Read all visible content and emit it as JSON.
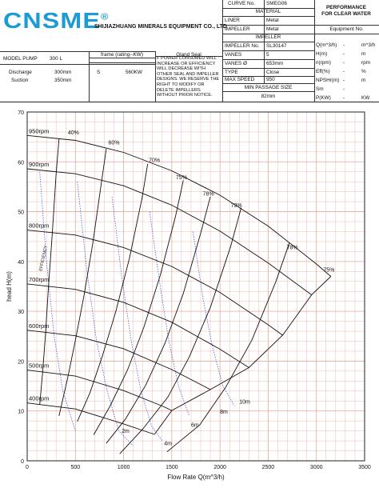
{
  "header": {
    "logo_text": "CNSME",
    "logo_mark": "®",
    "company": "SHIJIAZHUANG MINERALS EQUIPMENT CO., LTD",
    "curve_no_label": "CURVE No.",
    "curve_no_value": "SMEG06",
    "material_title": "MATERIAL",
    "liner_label": "LINER",
    "liner_value": "Metal",
    "impeller_label": "IMPELLER",
    "impeller_value": "Metal",
    "impeller_title": "IMPELLER",
    "impeller_no_label": "IMPELLER No.",
    "impeller_no_value": "SL30147",
    "vanes_label": "VANES",
    "vanes_value": "5",
    "vanes_dia_label": "VANES Ø",
    "vanes_dia_value": "653mm",
    "type_label": "TYPE",
    "type_value": "Close",
    "max_speed_label": "MAX SPEED",
    "max_speed_value": "950",
    "min_passage_label": "MIN PASSAGE SIZE",
    "min_passage_value": "82mm",
    "performance_line1": "PERFORMANCE",
    "performance_line2": "FOR CLEAR WATER",
    "equipment_no_label": "Equipment No.",
    "model_label": "MODEL PUMP",
    "model_value": "300   L",
    "discharge_label": "Discharge",
    "discharge_value": "300mm",
    "suction_label": "Suction",
    "suction_value": "350mm",
    "frame_label": "frame (rating--KW)",
    "gland_label": "Gland Seal",
    "frame_value": "S",
    "rating_value": "560KW",
    "notice": "F POWER CONSUMED WILL INCREASE OR EFFICIENCY WILL DECREASE WITH OTHER SEAL AND IMPELLER DESIGNS. WE RESERVE THE RIGHT TO MODIFY OR DELETE IMPELLERS WITHOUT PRIOR NOTICE.",
    "perf_rows": [
      {
        "label": "Q(m^3/h)",
        "dash": "-",
        "unit": "m^3/h"
      },
      {
        "label": "H(m)",
        "dash": "-",
        "unit": "m"
      },
      {
        "label": "n(rpm)",
        "dash": "-",
        "unit": "rpm"
      },
      {
        "label": "Eff(%)",
        "dash": "-",
        "unit": "%"
      },
      {
        "label": "NPSHr(m)",
        "dash": "-",
        "unit": "m"
      },
      {
        "label": "Sm",
        "dash": "-",
        "unit": ""
      },
      {
        "label": "P(KW)",
        "dash": "-",
        "unit": "KW"
      }
    ]
  },
  "chart_data": {
    "type": "line",
    "xlabel": "Flow Rate Q(m^3/h)",
    "ylabel": "head H(m)",
    "xlim": [
      0,
      3500
    ],
    "ylim": [
      0,
      70
    ],
    "x_ticks": [
      0,
      500,
      1000,
      1500,
      2000,
      2500,
      3000,
      3500
    ],
    "y_ticks": [
      0,
      10,
      20,
      30,
      40,
      50,
      60,
      70
    ],
    "grid": true,
    "grid_color": "#e8a89a",
    "line_color": "#111111",
    "npsh_color": "#3a4fd0",
    "speed_curves": [
      {
        "name": "950rpm",
        "points": [
          [
            0,
            65.3
          ],
          [
            500,
            64.3
          ],
          [
            1000,
            61.9
          ],
          [
            1500,
            58.2
          ],
          [
            2000,
            53.3
          ],
          [
            2500,
            47.1
          ],
          [
            3000,
            39.5
          ],
          [
            3150,
            37.0
          ]
        ]
      },
      {
        "name": "900rpm",
        "points": [
          [
            0,
            58.6
          ],
          [
            500,
            57.6
          ],
          [
            1000,
            55.2
          ],
          [
            1500,
            51.3
          ],
          [
            2000,
            46.1
          ],
          [
            2500,
            39.7
          ],
          [
            2950,
            33.3
          ]
        ]
      },
      {
        "name": "800rpm",
        "points": [
          [
            0,
            46.3
          ],
          [
            500,
            45.3
          ],
          [
            1000,
            42.8
          ],
          [
            1500,
            39.0
          ],
          [
            2000,
            33.8
          ],
          [
            2500,
            27.3
          ],
          [
            2650,
            25.2
          ]
        ]
      },
      {
        "name": "700rpm",
        "points": [
          [
            0,
            35.5
          ],
          [
            500,
            34.4
          ],
          [
            1000,
            31.8
          ],
          [
            1500,
            27.8
          ],
          [
            2000,
            22.4
          ],
          [
            2300,
            18.7
          ]
        ]
      },
      {
        "name": "600rpm",
        "points": [
          [
            0,
            26.2
          ],
          [
            500,
            25.1
          ],
          [
            1000,
            22.5
          ],
          [
            1500,
            18.3
          ],
          [
            1900,
            14.3
          ]
        ]
      },
      {
        "name": "500rpm",
        "points": [
          [
            0,
            18.2
          ],
          [
            500,
            17.0
          ],
          [
            1000,
            14.1
          ],
          [
            1400,
            11.0
          ],
          [
            1500,
            10.1
          ]
        ]
      },
      {
        "name": "400rpm",
        "points": [
          [
            0,
            11.6
          ],
          [
            500,
            10.4
          ],
          [
            1000,
            7.4
          ],
          [
            1320,
            5.3
          ]
        ]
      }
    ],
    "efficiency_curves": [
      {
        "name": "40%",
        "points": [
          [
            330,
            64.6
          ],
          [
            300,
            57.6
          ],
          [
            260,
            45.4
          ],
          [
            220,
            34.6
          ],
          [
            190,
            25.4
          ],
          [
            160,
            17.7
          ],
          [
            130,
            11.3
          ]
        ]
      },
      {
        "name": "60%",
        "points": [
          [
            820,
            62.6
          ],
          [
            770,
            55.8
          ],
          [
            680,
            43.6
          ],
          [
            590,
            33.2
          ],
          [
            500,
            24.2
          ],
          [
            420,
            16.6
          ],
          [
            330,
            9.0
          ]
        ]
      },
      {
        "name": "70%",
        "points": [
          [
            1250,
            59.6
          ],
          [
            1190,
            52.6
          ],
          [
            1060,
            40.6
          ],
          [
            920,
            30.0
          ],
          [
            780,
            21.0
          ],
          [
            650,
            13.6
          ],
          [
            520,
            7.9
          ]
        ]
      },
      {
        "name": "75%",
        "points": [
          [
            1620,
            56.3
          ],
          [
            1540,
            49.2
          ],
          [
            1380,
            37.2
          ],
          [
            1210,
            26.8
          ],
          [
            1040,
            18.2
          ],
          [
            860,
            11.0
          ],
          [
            690,
            5.2
          ]
        ]
      },
      {
        "name": "78%",
        "points": [
          [
            1900,
            53.0
          ],
          [
            1800,
            45.7
          ],
          [
            1620,
            33.6
          ],
          [
            1430,
            23.6
          ],
          [
            1230,
            15.2
          ],
          [
            1020,
            8.4
          ],
          [
            820,
            3.5
          ]
        ]
      },
      {
        "name": "79%",
        "points": [
          [
            2220,
            50.8
          ],
          [
            2110,
            43.0
          ],
          [
            1900,
            30.8
          ],
          [
            1680,
            20.8
          ],
          [
            1460,
            12.8
          ],
          [
            1200,
            6.4
          ],
          [
            960,
            1.4
          ]
        ]
      },
      {
        "name": "78%",
        "points": [
          [
            2720,
            43.8
          ],
          [
            2580,
            36.0
          ],
          [
            2330,
            24.2
          ],
          [
            2060,
            14.8
          ],
          [
            1790,
            7.2
          ],
          [
            1450,
            1.8
          ]
        ]
      },
      {
        "name": "75%",
        "points": [
          [
            3150,
            37.0
          ],
          [
            2950,
            33.3
          ],
          [
            2650,
            25.2
          ],
          [
            2300,
            18.7
          ],
          [
            1900,
            14.3
          ],
          [
            1500,
            10.1
          ],
          [
            1320,
            5.3
          ]
        ]
      }
    ],
    "efficiency_curve_label": "EFFICIENCY",
    "efficiency_label_points": [
      [
        480,
        65.5
      ],
      [
        900,
        63.5
      ],
      [
        1320,
        60.0
      ],
      [
        1600,
        56.5
      ],
      [
        1880,
        53.2
      ],
      [
        2170,
        50.9
      ],
      [
        2750,
        42.5
      ],
      [
        3130,
        38.0
      ]
    ],
    "npsh_curves": [
      {
        "name": "2m",
        "points": [
          [
            130,
            58.0
          ],
          [
            200,
            40.0
          ],
          [
            280,
            25.0
          ],
          [
            370,
            14.0
          ],
          [
            500,
            6.0
          ]
        ]
      },
      {
        "name": "4m",
        "points": [
          [
            520,
            56.0
          ],
          [
            620,
            38.0
          ],
          [
            720,
            24.0
          ],
          [
            830,
            14.0
          ],
          [
            950,
            6.0
          ],
          [
            1100,
            3.0
          ]
        ]
      },
      {
        "name": "6m",
        "points": [
          [
            880,
            53.0
          ],
          [
            980,
            37.0
          ],
          [
            1080,
            24.0
          ],
          [
            1180,
            14.0
          ],
          [
            1290,
            7.0
          ],
          [
            1400,
            4.0
          ]
        ]
      },
      {
        "name": "8m",
        "points": [
          [
            1270,
            50.0
          ],
          [
            1380,
            35.0
          ],
          [
            1470,
            24.0
          ],
          [
            1570,
            15.0
          ],
          [
            1680,
            9.0
          ]
        ]
      },
      {
        "name": "10m",
        "points": [
          [
            1720,
            46.0
          ],
          [
            1820,
            33.0
          ],
          [
            1920,
            23.0
          ],
          [
            2030,
            15.0
          ],
          [
            2150,
            11.0
          ]
        ]
      }
    ],
    "npsh_label_points": [
      [
        980,
        5.6
      ],
      [
        1420,
        3.1
      ],
      [
        1700,
        6.8
      ],
      [
        2000,
        9.5
      ],
      [
        2200,
        11.5
      ]
    ]
  }
}
